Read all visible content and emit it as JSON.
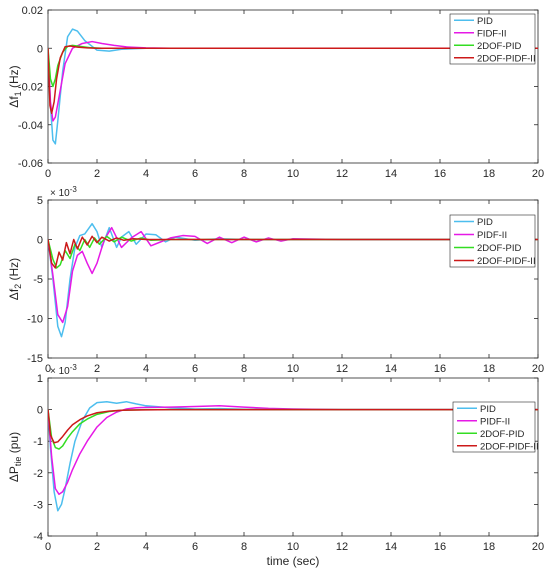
{
  "chart_data": [
    {
      "type": "line",
      "ylabel_main": "Δf",
      "ylabel_sub": "1",
      "ylabel_unit": " (Hz)",
      "multiplier": "",
      "xlim": [
        0,
        20
      ],
      "ylim": [
        -0.06,
        0.02
      ],
      "xticks": [
        0,
        2,
        4,
        6,
        8,
        10,
        12,
        14,
        16,
        18,
        20
      ],
      "yticks": [
        -0.06,
        -0.04,
        -0.02,
        0,
        0.02
      ],
      "ytick_labels": [
        "-0.06",
        "-0.04",
        "-0.02",
        "0",
        "0.02"
      ],
      "xlabel": "",
      "legend_position": "top-right",
      "series": [
        {
          "name": "PID",
          "color": "#4dbeee",
          "x": [
            0,
            0.1,
            0.2,
            0.3,
            0.4,
            0.6,
            0.8,
            1.0,
            1.2,
            1.5,
            2.0,
            2.5,
            3.0,
            4.0,
            5.0,
            6.0,
            8.0,
            20.0
          ],
          "y": [
            0,
            -0.03,
            -0.048,
            -0.05,
            -0.038,
            -0.012,
            0.006,
            0.01,
            0.009,
            0.004,
            -0.001,
            -0.0015,
            -0.0005,
            0,
            0,
            0,
            0,
            0
          ]
        },
        {
          "name": "FIDF-II",
          "color": "#e619e6",
          "x": [
            0,
            0.1,
            0.2,
            0.3,
            0.5,
            0.7,
            1.0,
            1.4,
            1.8,
            2.2,
            2.7,
            3.2,
            4.0,
            5.0,
            6.0,
            8.0,
            20.0
          ],
          "y": [
            0,
            -0.028,
            -0.038,
            -0.036,
            -0.022,
            -0.008,
            0.0,
            0.0025,
            0.0035,
            0.0025,
            0.0015,
            0.0007,
            0.0002,
            0,
            0,
            0,
            0
          ]
        },
        {
          "name": "2DOF-PID",
          "color": "#33dd22",
          "x": [
            0,
            0.1,
            0.2,
            0.3,
            0.4,
            0.6,
            0.8,
            1.0,
            1.3,
            1.7,
            2.2,
            3.0,
            5.0,
            20.0
          ],
          "y": [
            0,
            -0.016,
            -0.02,
            -0.016,
            -0.009,
            -0.002,
            0.001,
            0.0015,
            0.001,
            0.0003,
            0,
            0,
            0,
            0
          ]
        },
        {
          "name": "2DOF-PIDF-II",
          "color": "#cc1a1a",
          "x": [
            0,
            0.08,
            0.15,
            0.25,
            0.35,
            0.5,
            0.7,
            0.9,
            1.2,
            1.6,
            2.0,
            3.0,
            20.0
          ],
          "y": [
            0,
            -0.03,
            -0.034,
            -0.028,
            -0.016,
            -0.005,
            0.0008,
            0.0012,
            0.0006,
            0.0002,
            0,
            0,
            0
          ]
        }
      ]
    },
    {
      "type": "line",
      "ylabel_main": "Δf",
      "ylabel_sub": "2",
      "ylabel_unit": " (Hz)",
      "multiplier": "× 10",
      "multiplier_exp": "-3",
      "xlim": [
        0,
        20
      ],
      "ylim": [
        -15,
        5
      ],
      "xticks": [
        0,
        2,
        4,
        6,
        8,
        10,
        12,
        14,
        16,
        18,
        20
      ],
      "yticks": [
        -15,
        -10,
        -5,
        0,
        5
      ],
      "ytick_labels": [
        "-15",
        "-10",
        "-5",
        "0",
        "5"
      ],
      "xlabel": "",
      "legend_position": "right",
      "series": [
        {
          "name": "PID",
          "color": "#4dbeee",
          "x": [
            0,
            0.2,
            0.4,
            0.55,
            0.7,
            0.9,
            1.1,
            1.3,
            1.5,
            1.8,
            2.0,
            2.2,
            2.5,
            2.8,
            3.0,
            3.3,
            3.6,
            4.0,
            4.4,
            4.8,
            5.2,
            6.0,
            7.0,
            8.0,
            20.0
          ],
          "y": [
            0,
            -5,
            -11,
            -12.3,
            -10.5,
            -5,
            -1,
            0.5,
            0.7,
            2.0,
            1.0,
            -1.0,
            1.5,
            -1.0,
            0.3,
            1.0,
            -0.6,
            0.7,
            0.6,
            -0.3,
            0.3,
            -0.1,
            0.1,
            0,
            0
          ]
        },
        {
          "name": "PIDF-II",
          "color": "#e619e6",
          "x": [
            0,
            0.2,
            0.4,
            0.6,
            0.8,
            1.0,
            1.2,
            1.4,
            1.6,
            1.8,
            2.0,
            2.3,
            2.6,
            3.0,
            3.4,
            3.8,
            4.2,
            4.6,
            5.0,
            5.5,
            6.0,
            6.5,
            7.0,
            7.5,
            8.0,
            8.5,
            9.0,
            9.5,
            10.0,
            11.0,
            12.0,
            20.0
          ],
          "y": [
            0,
            -4.5,
            -9.5,
            -10.5,
            -8.5,
            -4,
            -2,
            -1.5,
            -3,
            -4.3,
            -3,
            0,
            1.5,
            -1.0,
            0.2,
            1.0,
            -0.8,
            -0.3,
            0.2,
            0.5,
            0.4,
            -0.5,
            0.3,
            -0.4,
            0.3,
            -0.3,
            0.2,
            -0.2,
            0.1,
            0.05,
            0,
            0
          ]
        },
        {
          "name": "2DOF-PID",
          "color": "#33dd22",
          "x": [
            0,
            0.2,
            0.35,
            0.5,
            0.7,
            0.9,
            1.1,
            1.3,
            1.5,
            1.7,
            1.9,
            2.1,
            2.4,
            2.7,
            3.0,
            3.4,
            3.8,
            4.2,
            5.0,
            6.0,
            20.0
          ],
          "y": [
            0,
            -2.5,
            -3.6,
            -3.2,
            -1.4,
            -2.4,
            -0.6,
            -1.4,
            0.0,
            -1.0,
            0.2,
            -0.6,
            0.4,
            -0.3,
            0.3,
            -0.2,
            0.2,
            -0.1,
            0,
            0,
            0
          ]
        },
        {
          "name": "2DOF-PIDF-II",
          "color": "#cc1a1a",
          "x": [
            0,
            0.15,
            0.3,
            0.45,
            0.6,
            0.75,
            0.9,
            1.05,
            1.2,
            1.4,
            1.6,
            1.8,
            2.0,
            2.2,
            2.5,
            2.8,
            3.1,
            3.5,
            4.0,
            5.0,
            6.0,
            20.0
          ],
          "y": [
            0,
            -3.0,
            -3.6,
            -1.6,
            -2.6,
            -0.4,
            -1.8,
            0.0,
            -1.2,
            0.3,
            -0.7,
            0.4,
            -0.4,
            0.3,
            -0.2,
            0.2,
            -0.1,
            0.1,
            0,
            0,
            0,
            0
          ]
        }
      ]
    },
    {
      "type": "line",
      "ylabel_main": "ΔP",
      "ylabel_sub": "tie",
      "ylabel_unit": " (pu)",
      "multiplier": "× 10",
      "multiplier_exp": "-3",
      "xlim": [
        0,
        20
      ],
      "ylim": [
        -4,
        1
      ],
      "xticks": [
        0,
        2,
        4,
        6,
        8,
        10,
        12,
        14,
        16,
        18,
        20
      ],
      "yticks": [
        -4,
        -3,
        -2,
        -1,
        0,
        1
      ],
      "ytick_labels": [
        "-4",
        "-3",
        "-2",
        "-1",
        "0",
        "1"
      ],
      "xlabel": "time (sec)",
      "legend_position": "right",
      "series": [
        {
          "name": "PID",
          "color": "#4dbeee",
          "x": [
            0,
            0.1,
            0.25,
            0.4,
            0.55,
            0.7,
            0.9,
            1.1,
            1.4,
            1.7,
            2.0,
            2.4,
            2.8,
            3.2,
            3.6,
            4.0,
            5.0,
            6.0,
            7.0,
            8.0,
            10.0,
            20.0
          ],
          "y": [
            0,
            -1.2,
            -2.6,
            -3.2,
            -3.0,
            -2.5,
            -1.7,
            -1.0,
            -0.35,
            0.05,
            0.22,
            0.25,
            0.2,
            0.25,
            0.18,
            0.12,
            0.06,
            0.02,
            0.03,
            0.01,
            0,
            0
          ]
        },
        {
          "name": "PIDF-II",
          "color": "#e619e6",
          "x": [
            0,
            0.15,
            0.3,
            0.45,
            0.6,
            0.8,
            1.0,
            1.3,
            1.6,
            2.0,
            2.4,
            2.8,
            3.2,
            3.6,
            4.0,
            5.0,
            6.0,
            7.0,
            8.0,
            9.0,
            10.0,
            12.0,
            20.0
          ],
          "y": [
            0,
            -1.5,
            -2.5,
            -2.68,
            -2.6,
            -2.3,
            -1.9,
            -1.4,
            -1.0,
            -0.55,
            -0.25,
            -0.08,
            0.02,
            0.06,
            0.07,
            0.08,
            0.1,
            0.12,
            0.08,
            0.04,
            0.02,
            0,
            0
          ]
        },
        {
          "name": "2DOF-PID",
          "color": "#33dd22",
          "x": [
            0,
            0.15,
            0.3,
            0.45,
            0.6,
            0.8,
            1.0,
            1.3,
            1.6,
            2.0,
            2.5,
            3.0,
            4.0,
            5.0,
            6.0,
            20.0
          ],
          "y": [
            0,
            -0.9,
            -1.2,
            -1.25,
            -1.15,
            -0.9,
            -0.7,
            -0.45,
            -0.3,
            -0.15,
            -0.06,
            -0.02,
            0,
            0,
            0,
            0
          ]
        },
        {
          "name": "2DOF-PIDF-II",
          "color": "#cc1a1a",
          "x": [
            0,
            0.1,
            0.25,
            0.4,
            0.6,
            0.8,
            1.0,
            1.3,
            1.6,
            2.0,
            2.5,
            3.0,
            4.0,
            5.0,
            6.0,
            20.0
          ],
          "y": [
            0,
            -0.8,
            -1.05,
            -1.02,
            -0.85,
            -0.65,
            -0.48,
            -0.32,
            -0.2,
            -0.1,
            -0.05,
            -0.02,
            -0.01,
            0,
            0,
            0
          ]
        }
      ]
    }
  ]
}
